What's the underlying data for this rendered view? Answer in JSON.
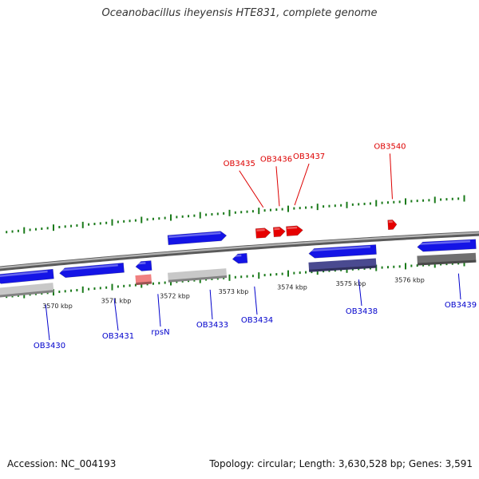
{
  "title": "Oceanobacillus iheyensis HTE831, complete genome",
  "footer": {
    "accession": "Accession: NC_004193",
    "summary": "Topology: circular; Length: 3,630,528 bp; Genes: 3,591"
  },
  "colors": {
    "backbone": "#8c8c8c",
    "gene_blue": "#1414e6",
    "gene_red": "#e60000",
    "gene_pink": "#f08080",
    "label_blue": "#0000cc",
    "label_red": "#dd0000",
    "tick_green": "#1a7a1a",
    "shadow_light": "#c8c8c8",
    "shadow_purple": "#4a4a90",
    "shadow_dark": "#707070"
  },
  "scale": {
    "unit": "kbp",
    "ticks": [
      {
        "kbp": 3570,
        "label": "3570 kbp"
      },
      {
        "kbp": 3571,
        "label": "3571 kbp"
      },
      {
        "kbp": 3572,
        "label": "3572 kbp"
      },
      {
        "kbp": 3573,
        "label": "3573 kbp"
      },
      {
        "kbp": 3574,
        "label": "3574 kbp"
      },
      {
        "kbp": 3575,
        "label": "3575 kbp"
      },
      {
        "kbp": 3576,
        "label": "3576 kbp"
      }
    ]
  },
  "genes": [
    {
      "name": "OB3430",
      "start": 3569.0,
      "end": 3570.0,
      "strand": "-",
      "color": "blue",
      "shadow": "light"
    },
    {
      "name": "OB3431",
      "start": 3570.1,
      "end": 3571.2,
      "strand": "-",
      "color": "blue"
    },
    {
      "name": "rpsN",
      "start": 3571.4,
      "end": 3571.67,
      "strand": "-",
      "color": "blue",
      "shadow": "pink"
    },
    {
      "name": "OB3433",
      "start": 3571.95,
      "end": 3572.95,
      "strand": "+",
      "color": "blue",
      "shadow": "light"
    },
    {
      "name": "OB3434",
      "start": 3573.05,
      "end": 3573.3,
      "strand": "-",
      "color": "blue"
    },
    {
      "name": "OB3435",
      "start": 3573.45,
      "end": 3573.7,
      "strand": "+",
      "color": "red"
    },
    {
      "name": "OB3436",
      "start": 3573.75,
      "end": 3573.95,
      "strand": "+",
      "color": "red"
    },
    {
      "name": "OB3437",
      "start": 3573.97,
      "end": 3574.25,
      "strand": "+",
      "color": "red"
    },
    {
      "name": "OB3438",
      "start": 3574.35,
      "end": 3575.5,
      "strand": "-",
      "color": "blue",
      "shadow": "purple"
    },
    {
      "name": "OB3540",
      "start": 3575.7,
      "end": 3575.85,
      "strand": "+",
      "color": "red"
    },
    {
      "name": "OB3439",
      "start": 3576.2,
      "end": 3577.2,
      "strand": "-",
      "color": "blue",
      "shadow": "dark"
    }
  ]
}
